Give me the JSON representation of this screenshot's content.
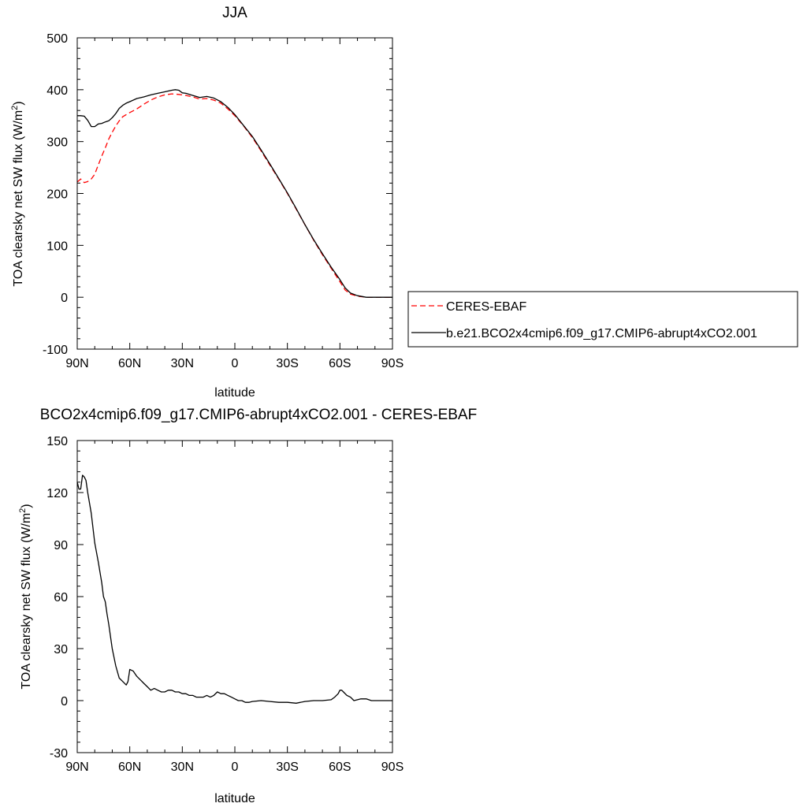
{
  "chart_data": [
    {
      "type": "line",
      "title": "JJA",
      "xlabel": "latitude",
      "ylabel": "TOA clearsky net SW flux (W/m",
      "ylabel_sup": "2",
      "ylabel_tail": ")",
      "xlim": [
        90,
        -90
      ],
      "ylim": [
        -100,
        500
      ],
      "xticks": [
        {
          "value": 90,
          "label": "90N"
        },
        {
          "value": 60,
          "label": "60N"
        },
        {
          "value": 30,
          "label": "30N"
        },
        {
          "value": 0,
          "label": "0"
        },
        {
          "value": -30,
          "label": "30S"
        },
        {
          "value": -60,
          "label": "60S"
        },
        {
          "value": -90,
          "label": "90S"
        }
      ],
      "yticks": [
        {
          "value": 500,
          "label": "500"
        },
        {
          "value": 400,
          "label": "400"
        },
        {
          "value": 300,
          "label": "300"
        },
        {
          "value": 200,
          "label": "200"
        },
        {
          "value": 100,
          "label": "100"
        },
        {
          "value": 0,
          "label": "0"
        },
        {
          "value": -100,
          "label": "-100"
        }
      ],
      "legend": "outside-right",
      "series": [
        {
          "name": "CERES-EBAF",
          "color": "#ff0000",
          "dash": true,
          "x": [
            90,
            88,
            86,
            84,
            82,
            80,
            78,
            76,
            74,
            72,
            70,
            68,
            66,
            64,
            62,
            60,
            56,
            52,
            48,
            44,
            40,
            36,
            32,
            28,
            24,
            20,
            16,
            12,
            8,
            4,
            0,
            -5,
            -10,
            -15,
            -20,
            -25,
            -30,
            -35,
            -40,
            -45,
            -50,
            -55,
            -60,
            -63,
            -66,
            -70,
            -75,
            -80,
            -85,
            -90
          ],
          "y": [
            222,
            228,
            221,
            223,
            228,
            237,
            255,
            272,
            288,
            305,
            318,
            330,
            340,
            348,
            352,
            356,
            363,
            372,
            380,
            386,
            390,
            392,
            391,
            389,
            386,
            382,
            383,
            380,
            374,
            363,
            350,
            330,
            308,
            282,
            255,
            228,
            200,
            170,
            140,
            110,
            82,
            56,
            30,
            14,
            6,
            2,
            0,
            0,
            0,
            0
          ]
        },
        {
          "name": "b.e21.BCO2x4cmip6.f09_g17.CMIP6-abrupt4xCO2.001",
          "color": "#000000",
          "dash": false,
          "x": [
            90,
            88,
            86,
            84,
            82,
            80,
            78,
            76,
            74,
            72,
            70,
            68,
            66,
            64,
            62,
            60,
            56,
            52,
            48,
            44,
            40,
            36,
            34,
            32,
            30,
            28,
            24,
            20,
            16,
            12,
            8,
            4,
            0,
            -5,
            -10,
            -15,
            -20,
            -25,
            -30,
            -35,
            -40,
            -45,
            -50,
            -55,
            -60,
            -63,
            -66,
            -70,
            -75,
            -80,
            -85,
            -90
          ],
          "y": [
            350,
            350,
            349,
            341,
            329,
            329,
            334,
            335,
            338,
            340,
            346,
            354,
            364,
            370,
            374,
            377,
            383,
            386,
            390,
            393,
            396,
            399,
            400,
            399,
            394,
            393,
            389,
            385,
            387,
            384,
            377,
            366,
            352,
            331,
            310,
            284,
            257,
            229,
            201,
            171,
            140,
            111,
            84,
            58,
            34,
            18,
            8,
            3,
            0,
            0,
            0,
            0
          ]
        }
      ]
    },
    {
      "type": "line",
      "title": "BCO2x4cmip6.f09_g17.CMIP6-abrupt4xCO2.001 - CERES-EBAF",
      "xlabel": "latitude",
      "ylabel": "TOA clearsky net SW flux (W/m",
      "ylabel_sup": "2",
      "ylabel_tail": ")",
      "xlim": [
        90,
        -90
      ],
      "ylim": [
        -30,
        150
      ],
      "xticks": [
        {
          "value": 90,
          "label": "90N"
        },
        {
          "value": 60,
          "label": "60N"
        },
        {
          "value": 30,
          "label": "30N"
        },
        {
          "value": 0,
          "label": "0"
        },
        {
          "value": -30,
          "label": "30S"
        },
        {
          "value": -60,
          "label": "60S"
        },
        {
          "value": -90,
          "label": "90S"
        }
      ],
      "yticks": [
        {
          "value": 150,
          "label": "150"
        },
        {
          "value": 120,
          "label": "120"
        },
        {
          "value": 90,
          "label": "90"
        },
        {
          "value": 60,
          "label": "60"
        },
        {
          "value": 30,
          "label": "30"
        },
        {
          "value": 0,
          "label": "0"
        },
        {
          "value": -30,
          "label": "-30"
        }
      ],
      "series": [
        {
          "color": "#000000",
          "dash": false,
          "x": [
            90,
            89,
            88,
            87,
            86,
            85,
            84,
            82,
            80,
            78,
            76,
            75,
            74,
            73,
            72,
            70,
            68,
            66,
            64,
            62,
            61,
            60,
            58,
            56,
            54,
            52,
            50,
            48,
            46,
            44,
            42,
            40,
            38,
            36,
            34,
            32,
            30,
            28,
            26,
            24,
            22,
            20,
            18,
            16,
            14,
            12,
            10,
            8,
            6,
            4,
            2,
            0,
            -2,
            -4,
            -6,
            -8,
            -10,
            -15,
            -20,
            -25,
            -30,
            -35,
            -40,
            -45,
            -50,
            -55,
            -57,
            -59,
            -60,
            -61,
            -62,
            -64,
            -66,
            -68,
            -70,
            -72,
            -75,
            -78,
            -80,
            -85,
            -90
          ],
          "y": [
            126,
            122,
            122,
            130,
            129,
            127,
            120,
            108,
            91,
            80,
            68,
            60,
            57,
            50,
            44,
            30,
            20,
            13,
            11,
            9,
            11,
            18,
            17,
            14,
            12,
            10,
            8,
            6,
            7,
            6,
            5,
            5,
            6,
            6,
            5,
            5,
            4,
            4,
            3,
            3,
            2,
            2,
            2,
            3,
            2,
            3,
            5,
            4,
            4,
            3,
            2,
            1,
            0,
            0,
            -1,
            -1,
            -0.5,
            0,
            -0.5,
            -1,
            -1,
            -1.5,
            -0.5,
            0,
            0,
            0.5,
            2,
            4,
            6,
            6,
            5,
            3,
            2,
            0,
            0.5,
            1,
            1,
            0,
            0,
            0,
            0
          ]
        }
      ]
    }
  ]
}
